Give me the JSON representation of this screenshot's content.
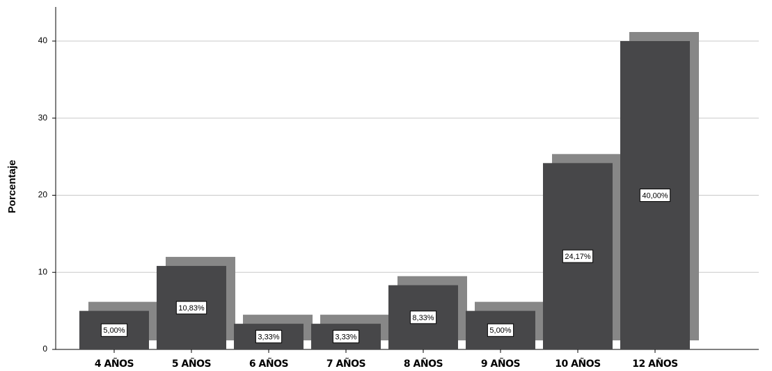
{
  "chart_data": {
    "type": "bar",
    "y_label": "Porcentaje",
    "categories": [
      "4 AÑOS",
      "5 AÑOS",
      "6 AÑOS",
      "7 AÑOS",
      "8 AÑOS",
      "9 AÑOS",
      "10 AÑOS",
      "12 AÑOS"
    ],
    "values": [
      5,
      10.83,
      3.33,
      3.33,
      8.33,
      5,
      24.17,
      40
    ],
    "value_labels": [
      "5,00%",
      "10,83%",
      "3,33%",
      "3,33%",
      "8,33%",
      "5,00%",
      "24,17%",
      "40,00%"
    ],
    "color": "#474749",
    "shadow_color": "#878787",
    "ylim": [
      0,
      44
    ],
    "yticks": [
      0,
      10,
      20,
      30,
      40
    ],
    "grid": true
  }
}
